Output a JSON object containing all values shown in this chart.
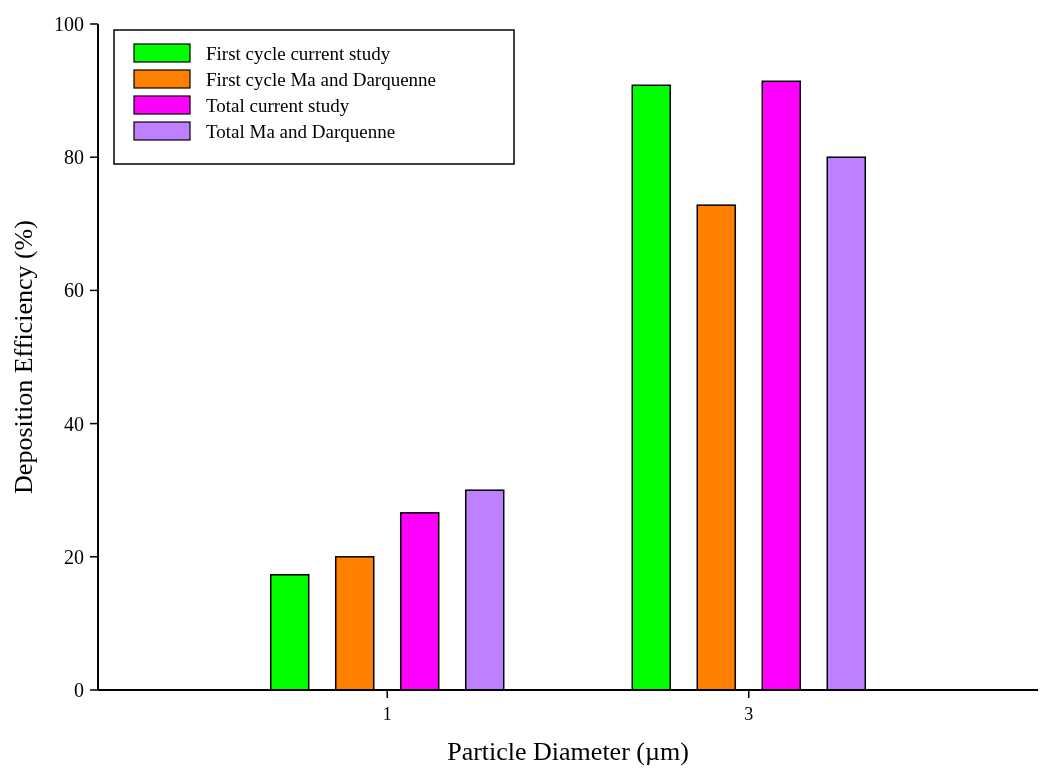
{
  "chart_data": {
    "type": "bar",
    "xlabel": "Particle Diameter (µm)",
    "ylabel": "Deposition Efficiency (%)",
    "categories": [
      "1",
      "3"
    ],
    "series": [
      {
        "name": "First cycle current study",
        "color": "#00ff00",
        "values": [
          17.3,
          90.8
        ]
      },
      {
        "name": "First cycle Ma and Darquenne",
        "color": "#ff8000",
        "values": [
          20,
          72.8
        ]
      },
      {
        "name": "Total current study",
        "color": "#ff00ff",
        "values": [
          26.6,
          91.4
        ]
      },
      {
        "name": "Total Ma and Darquenne",
        "color": "#bf80ff",
        "values": [
          30,
          80
        ]
      }
    ],
    "ylim": [
      0,
      100
    ],
    "yticks": [
      0,
      20,
      40,
      60,
      80,
      100
    ],
    "grid": false,
    "legend": "top left"
  }
}
